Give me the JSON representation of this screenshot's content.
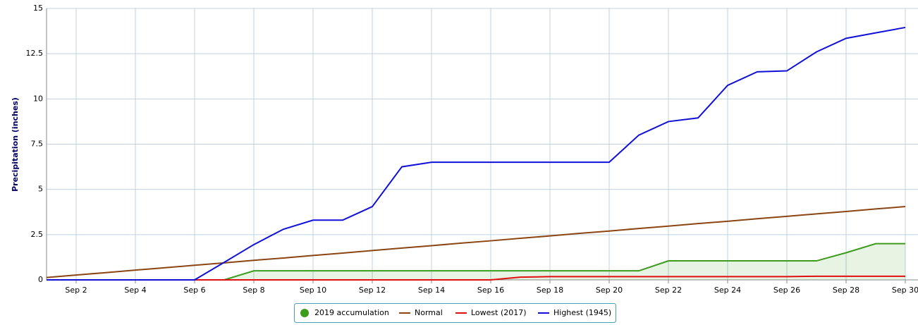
{
  "chart_data": {
    "type": "line",
    "y_label": "Precipitation (inches)",
    "categories": [
      null,
      "Sep 2",
      null,
      "Sep 4",
      null,
      "Sep 6",
      null,
      "Sep 8",
      null,
      "Sep 10",
      null,
      "Sep 12",
      null,
      "Sep 14",
      null,
      "Sep 16",
      null,
      "Sep 18",
      null,
      "Sep 20",
      null,
      "Sep 22",
      null,
      "Sep 24",
      null,
      "Sep 26",
      null,
      "Sep 28",
      null,
      "Sep 30"
    ],
    "ylim": [
      0,
      15
    ],
    "yticks": [
      0,
      2.5,
      5,
      7.5,
      10,
      12.5,
      15
    ],
    "grid": true,
    "legend": "bottom",
    "series": [
      {
        "name": "2019 accumulation",
        "color": "#3c9c1c",
        "fill": true,
        "values": [
          0,
          0,
          0,
          0,
          0,
          0,
          0,
          0.5,
          0.5,
          0.5,
          0.5,
          0.5,
          0.5,
          0.5,
          0.5,
          0.5,
          0.5,
          0.5,
          0.5,
          0.5,
          0.5,
          1.05,
          1.05,
          1.05,
          1.05,
          1.05,
          1.05,
          1.5,
          2.0,
          2.0
        ]
      },
      {
        "name": "Normal",
        "color": "#8b4513",
        "fill": false,
        "values": [
          0.13,
          0.27,
          0.4,
          0.54,
          0.67,
          0.81,
          0.94,
          1.08,
          1.21,
          1.35,
          1.48,
          1.62,
          1.76,
          1.89,
          2.03,
          2.16,
          2.3,
          2.43,
          2.57,
          2.7,
          2.84,
          2.97,
          3.11,
          3.24,
          3.38,
          3.51,
          3.65,
          3.78,
          3.92,
          4.05
        ]
      },
      {
        "name": "Lowest (2017)",
        "color": "#e01010",
        "fill": false,
        "values": [
          0,
          0,
          0,
          0,
          0,
          0,
          0,
          0,
          0,
          0,
          0,
          0,
          0,
          0,
          0,
          0,
          0.15,
          0.18,
          0.18,
          0.18,
          0.18,
          0.18,
          0.18,
          0.18,
          0.18,
          0.18,
          0.2,
          0.2,
          0.2,
          0.2
        ]
      },
      {
        "name": "Highest (1945)",
        "color": "#1010d8",
        "fill": false,
        "values": [
          0,
          0,
          0,
          0,
          0,
          0,
          0.97,
          1.95,
          2.8,
          3.3,
          3.3,
          4.05,
          6.25,
          6.5,
          6.5,
          6.5,
          6.5,
          6.5,
          6.5,
          6.5,
          8.0,
          8.75,
          8.95,
          10.75,
          11.5,
          11.55,
          12.6,
          13.35,
          13.65,
          13.95
        ]
      }
    ]
  }
}
